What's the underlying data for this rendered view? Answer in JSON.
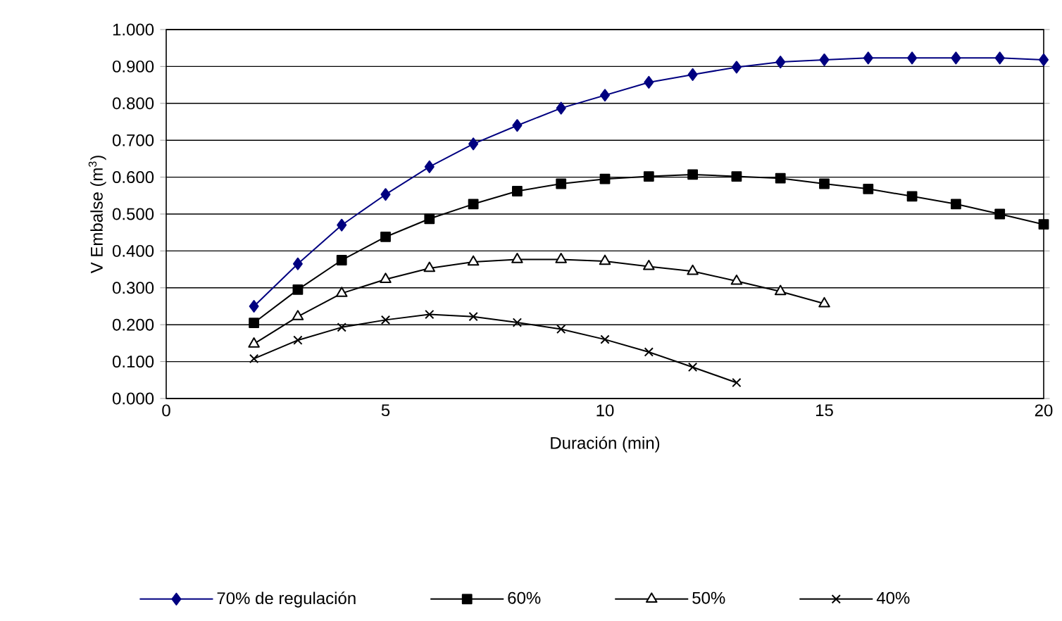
{
  "chart_data": {
    "type": "line",
    "xlabel": "Duración (min)",
    "ylabel": "V Embalse (m$^{3}$)",
    "xlim": [
      0,
      20
    ],
    "xticks": [
      0,
      5,
      10,
      15,
      20
    ],
    "ylim": [
      0,
      1
    ],
    "yticks": [
      {
        "value": 0,
        "label": "0.000"
      },
      {
        "value": 0.1,
        "label": "0.100"
      },
      {
        "value": 0.2,
        "label": "0.200"
      },
      {
        "value": 0.3,
        "label": "0.300"
      },
      {
        "value": 0.4,
        "label": "0.400"
      },
      {
        "value": 0.5,
        "label": "0.500"
      },
      {
        "value": 0.6,
        "label": "0.600"
      },
      {
        "value": 0.7,
        "label": "0.700"
      },
      {
        "value": 0.8,
        "label": "0.800"
      },
      {
        "value": 0.9,
        "label": "0.900"
      },
      {
        "value": 1,
        "label": "1.000"
      }
    ],
    "grid": "y",
    "legend": "bottom",
    "line_style": "solid",
    "series": [
      {
        "name": "70% de regulación",
        "color": "#000080",
        "marker": "diamond",
        "x": [
          2,
          3,
          4,
          5,
          6,
          7,
          8,
          9,
          10,
          11,
          12,
          13,
          14,
          15,
          16,
          17,
          18,
          19,
          20
        ],
        "values": [
          0.25,
          0.365,
          0.47,
          0.553,
          0.628,
          0.69,
          0.74,
          0.787,
          0.822,
          0.857,
          0.878,
          0.898,
          0.912,
          0.918,
          0.923,
          0.923,
          0.923,
          0.923,
          0.918
        ]
      },
      {
        "name": "60%",
        "color": "#000000",
        "marker": "square",
        "x": [
          2,
          3,
          4,
          5,
          6,
          7,
          8,
          9,
          10,
          11,
          12,
          13,
          14,
          15,
          16,
          17,
          18,
          19,
          20
        ],
        "values": [
          0.205,
          0.295,
          0.375,
          0.438,
          0.487,
          0.527,
          0.562,
          0.582,
          0.595,
          0.602,
          0.607,
          0.602,
          0.597,
          0.582,
          0.568,
          0.548,
          0.527,
          0.5,
          0.472
        ]
      },
      {
        "name": "50%",
        "color": "#000000",
        "marker": "triangle",
        "x": [
          2,
          3,
          4,
          5,
          6,
          7,
          8,
          9,
          10,
          11,
          12,
          13,
          14,
          15
        ],
        "values": [
          0.148,
          0.222,
          0.285,
          0.323,
          0.353,
          0.37,
          0.377,
          0.377,
          0.372,
          0.358,
          0.345,
          0.318,
          0.29,
          0.257
        ]
      },
      {
        "name": "40%",
        "color": "#000000",
        "marker": "cross",
        "x": [
          2,
          3,
          4,
          5,
          6,
          7,
          8,
          9,
          10,
          11,
          12,
          13
        ],
        "values": [
          0.108,
          0.158,
          0.193,
          0.213,
          0.228,
          0.222,
          0.206,
          0.188,
          0.16,
          0.126,
          0.085,
          0.043
        ]
      }
    ]
  }
}
